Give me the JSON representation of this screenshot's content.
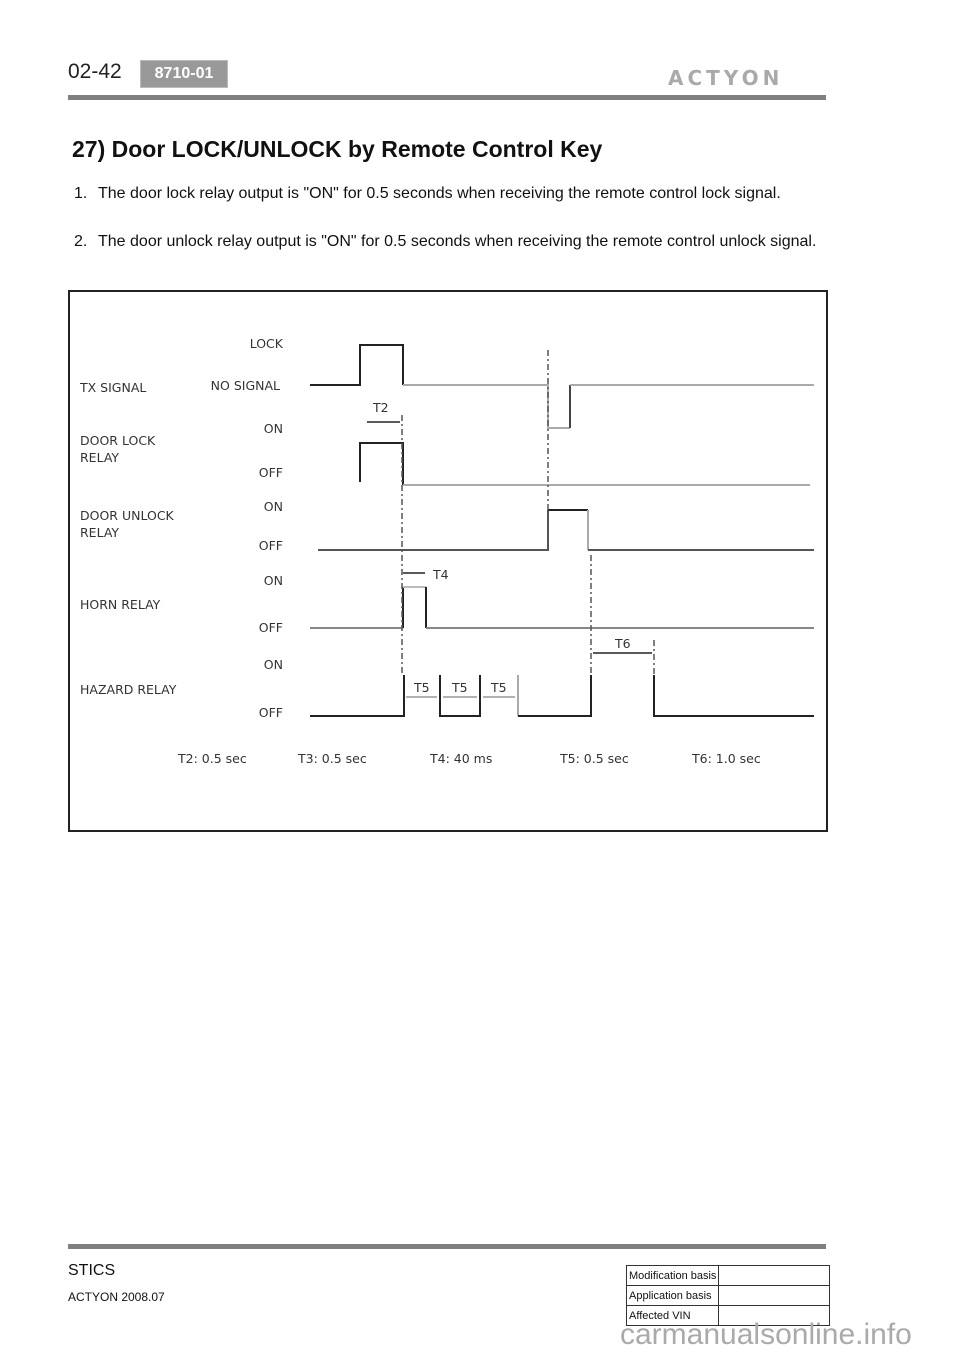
{
  "header": {
    "page_number": "02-42",
    "section_code": "8710-01",
    "brand_logo": "ACTYON"
  },
  "title": "27) Door LOCK/UNLOCK by Remote Control Key",
  "items": [
    {
      "num": "1.",
      "text": "The door lock relay output is \"ON\" for 0.5 seconds when receiving the remote control lock signal."
    },
    {
      "num": "2.",
      "text": "The door unlock relay output is \"ON\" for 0.5 seconds when receiving the remote control unlock signal."
    }
  ],
  "diagram": {
    "signals": [
      {
        "name": "TX SIGNAL",
        "high": "LOCK",
        "low": "NO SIGNAL"
      },
      {
        "name": "DOOR LOCK RELAY",
        "high": "ON",
        "low": "OFF"
      },
      {
        "name": "DOOR UNLOCK RELAY",
        "high": "ON",
        "low": "OFF"
      },
      {
        "name": "HORN RELAY",
        "high": "ON",
        "low": "OFF"
      },
      {
        "name": "HAZARD RELAY",
        "high": "ON",
        "low": "OFF"
      }
    ],
    "signal_name_lines": [
      [
        "TX SIGNAL"
      ],
      [
        "DOOR LOCK",
        "RELAY"
      ],
      [
        "DOOR UNLOCK",
        "RELAY"
      ],
      [
        "HORN RELAY"
      ],
      [
        "HAZARD RELAY"
      ]
    ],
    "markers": {
      "t2": "T2",
      "t4": "T4",
      "t5": "T5",
      "t6": "T6"
    },
    "legend": [
      "T2: 0.5 sec",
      "T3: 0.5 sec",
      "T4: 40 ms",
      "T5: 0.5 sec",
      "T6: 1.0 sec"
    ]
  },
  "footer": {
    "section": "STICS",
    "version": "ACTYON 2008.07",
    "table": [
      "Modification basis",
      "Application basis",
      "Affected VIN"
    ],
    "watermark": "carmanualsonline.info"
  }
}
